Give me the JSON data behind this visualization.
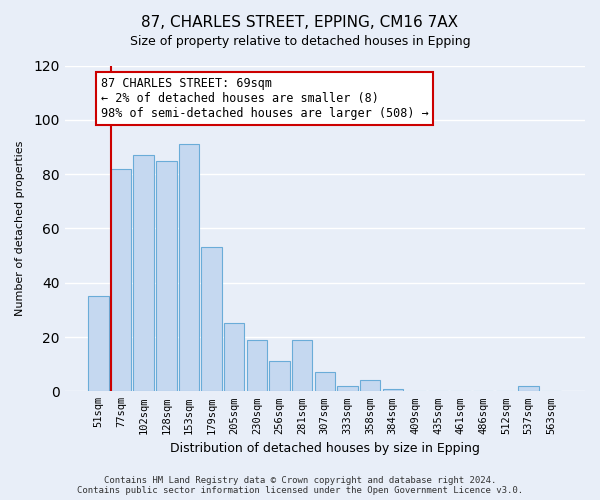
{
  "title": "87, CHARLES STREET, EPPING, CM16 7AX",
  "subtitle": "Size of property relative to detached houses in Epping",
  "xlabel": "Distribution of detached houses by size in Epping",
  "ylabel": "Number of detached properties",
  "bar_labels": [
    "51sqm",
    "77sqm",
    "102sqm",
    "128sqm",
    "153sqm",
    "179sqm",
    "205sqm",
    "230sqm",
    "256sqm",
    "281sqm",
    "307sqm",
    "333sqm",
    "358sqm",
    "384sqm",
    "409sqm",
    "435sqm",
    "461sqm",
    "486sqm",
    "512sqm",
    "537sqm",
    "563sqm"
  ],
  "bar_values": [
    35,
    82,
    87,
    85,
    91,
    53,
    25,
    19,
    11,
    19,
    7,
    2,
    4,
    1,
    0,
    0,
    0,
    0,
    0,
    2,
    0
  ],
  "bar_color": "#c5d8f0",
  "bar_edge_color": "#6aacd8",
  "ylim": [
    0,
    120
  ],
  "yticks": [
    0,
    20,
    40,
    60,
    80,
    100,
    120
  ],
  "annotation_title": "87 CHARLES STREET: 69sqm",
  "annotation_line1": "← 2% of detached houses are smaller (8)",
  "annotation_line2": "98% of semi-detached houses are larger (508) →",
  "vline_color": "#cc0000",
  "annotation_box_color": "#ffffff",
  "annotation_box_edge_color": "#cc0000",
  "footer_line1": "Contains HM Land Registry data © Crown copyright and database right 2024.",
  "footer_line2": "Contains public sector information licensed under the Open Government Licence v3.0.",
  "background_color": "#e8eef8",
  "plot_background_color": "#e8eef8",
  "grid_color": "#ffffff",
  "title_fontsize": 11,
  "subtitle_fontsize": 9,
  "xlabel_fontsize": 9,
  "ylabel_fontsize": 8,
  "tick_fontsize": 7.5,
  "annotation_fontsize": 8.5
}
